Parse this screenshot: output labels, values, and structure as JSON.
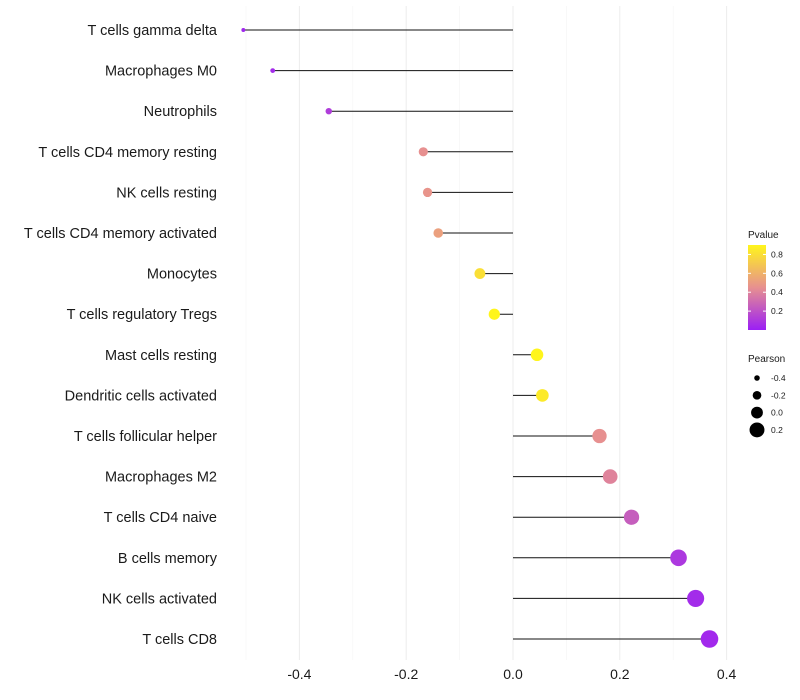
{
  "chart_data": {
    "type": "lollipop",
    "xlabel": "",
    "ylabel": "",
    "xlim": [
      -0.5,
      0.4
    ],
    "xticks": [
      "-0.4",
      "-0.2",
      "0.0",
      "0.2",
      "0.4"
    ],
    "xtick_values": [
      -0.4,
      -0.2,
      0.0,
      0.2,
      0.4
    ],
    "categories": [
      "T cells gamma delta",
      "Macrophages M0",
      "Neutrophils",
      "T cells CD4 memory resting",
      "NK cells resting",
      "T cells CD4 memory activated",
      "Monocytes",
      "T cells regulatory  Tregs ",
      "Mast cells resting",
      "Dendritic cells activated",
      "T cells follicular helper",
      "Macrophages M2",
      "T cells CD4 naive",
      "B cells memory",
      "NK cells activated",
      "T cells CD8"
    ],
    "pearson": [
      -0.505,
      -0.45,
      -0.345,
      -0.168,
      -0.16,
      -0.14,
      -0.062,
      -0.035,
      0.045,
      0.055,
      0.162,
      0.182,
      0.222,
      0.31,
      0.342,
      0.368
    ],
    "pvalue": [
      0.03,
      0.05,
      0.12,
      0.45,
      0.47,
      0.52,
      0.8,
      0.9,
      0.9,
      0.85,
      0.45,
      0.4,
      0.25,
      0.1,
      0.05,
      0.04
    ],
    "color_legend": {
      "title": "Pvalue",
      "low_color": "#9b1ff5",
      "mid_color": "#e79090",
      "high_color": "#fff51c",
      "range": [
        0.0,
        0.9
      ],
      "ticks": [
        "0.8",
        "0.6",
        "0.4",
        "0.2"
      ],
      "tick_values": [
        0.8,
        0.6,
        0.4,
        0.2
      ]
    },
    "size_legend": {
      "title": "Pearson",
      "labels": [
        "-0.4",
        "-0.2",
        "0.0",
        "0.2"
      ],
      "values": [
        -0.4,
        -0.2,
        0.0,
        0.2
      ]
    }
  }
}
